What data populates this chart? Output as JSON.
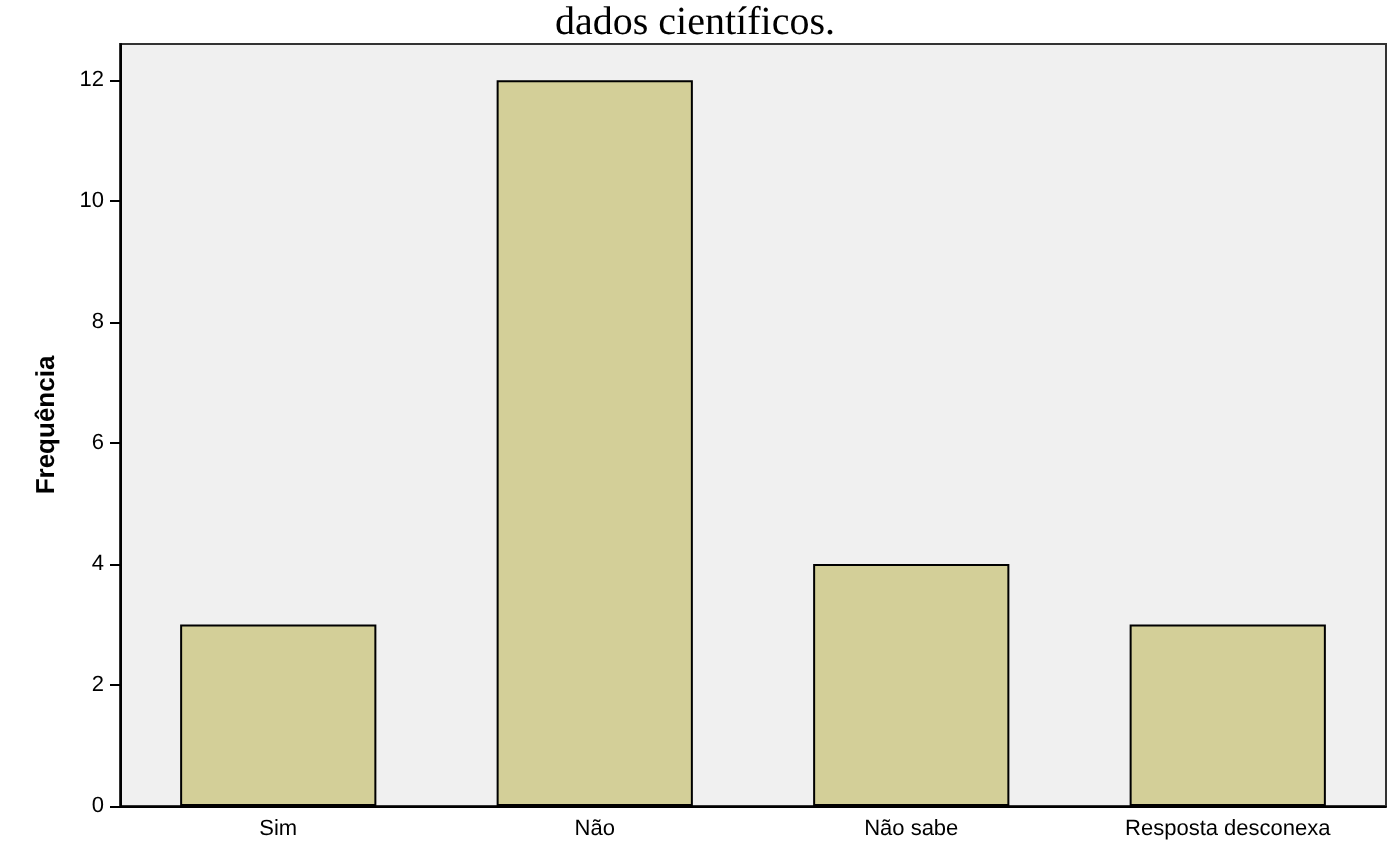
{
  "chart_data": {
    "type": "bar",
    "title": "dados científicos.",
    "ylabel": "Frequência",
    "categories": [
      "Sim",
      "Não",
      "Não sabe",
      "Resposta desconexa"
    ],
    "values": [
      3,
      12,
      4,
      3
    ],
    "color": "#d3cf98",
    "ylim": [
      0,
      12.6
    ],
    "yticks": [
      0,
      2,
      4,
      6,
      8,
      10,
      12
    ],
    "grid": false
  }
}
